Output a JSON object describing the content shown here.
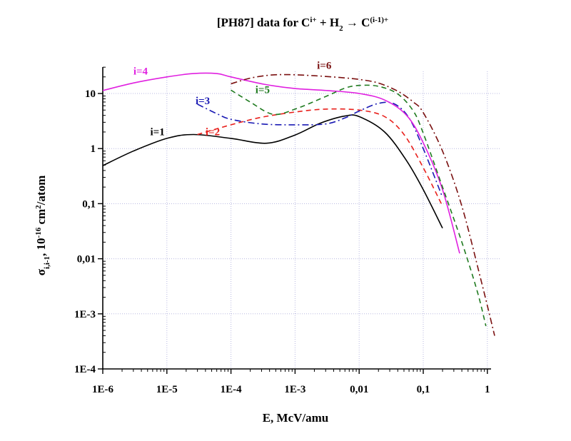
{
  "chart_data": {
    "type": "line",
    "title": {
      "prefix": "[PH87] data for ",
      "ion": "C",
      "ion_sup": "i+",
      "plus": " + ",
      "target": "H",
      "target_sub": "2",
      "arrow": " → ",
      "product": "C",
      "product_sup": "(i-1)+"
    },
    "xlabel": "E, McV/amu",
    "ylabel": {
      "symbol": "σ",
      "symbol_sub": "i,i-1",
      "rest": ", 10",
      "exp": "-16",
      "unit": " cm",
      "unit_sup": "2",
      "unit_rest": "/atom"
    },
    "xscale": "log",
    "yscale": "log",
    "xlim": [
      1e-06,
      1.3
    ],
    "ylim": [
      0.0001,
      58
    ],
    "xticks": [
      {
        "value": 1e-06,
        "label": "1E-6"
      },
      {
        "value": 1e-05,
        "label": "1E-5"
      },
      {
        "value": 0.0001,
        "label": "1E-4"
      },
      {
        "value": 0.001,
        "label": "1E-3"
      },
      {
        "value": 0.01,
        "label": "0,01"
      },
      {
        "value": 0.1,
        "label": "0,1"
      },
      {
        "value": 1,
        "label": "1"
      }
    ],
    "yticks": [
      {
        "value": 0.0001,
        "label": "1E-4"
      },
      {
        "value": 0.001,
        "label": "1E-3"
      },
      {
        "value": 0.01,
        "label": "0,01"
      },
      {
        "value": 0.1,
        "label": "0,1"
      },
      {
        "value": 1,
        "label": "1"
      },
      {
        "value": 10,
        "label": "10"
      }
    ],
    "grid": true,
    "legend": "inline labels",
    "series": [
      {
        "name": "i=1",
        "color": "#000000",
        "style": "solid",
        "label_at": [
          5.5e-06,
          1.75
        ],
        "x": [
          1e-06,
          3e-06,
          1e-05,
          2.6e-05,
          0.0001,
          0.00036,
          0.001,
          0.0025,
          0.006,
          0.01,
          0.025,
          0.055,
          0.1,
          0.2
        ],
        "y": [
          0.49,
          0.9,
          1.53,
          1.8,
          1.53,
          1.25,
          1.76,
          2.9,
          3.9,
          3.8,
          2.0,
          0.6,
          0.18,
          0.036
        ]
      },
      {
        "name": "i=2",
        "color": "#e8201c",
        "style": "dash",
        "label_at": [
          4e-05,
          1.75
        ],
        "x": [
          3e-05,
          0.0001,
          0.0003,
          0.001,
          0.003,
          0.01,
          0.025,
          0.05,
          0.1,
          0.2
        ],
        "y": [
          1.8,
          2.7,
          3.7,
          4.6,
          5.2,
          5.0,
          3.8,
          1.8,
          0.45,
          0.09
        ]
      },
      {
        "name": "i=3",
        "color": "#1a1ab4",
        "style": "dashdot",
        "label_at": [
          2.8e-05,
          6.4
        ],
        "x": [
          3e-05,
          6e-05,
          0.0001,
          0.0003,
          0.001,
          0.003,
          0.006,
          0.01,
          0.02,
          0.035,
          0.06,
          0.1,
          0.2
        ],
        "y": [
          6.4,
          4.3,
          3.4,
          2.8,
          2.7,
          2.8,
          3.6,
          4.8,
          6.6,
          6.5,
          3.6,
          1.0,
          0.13
        ]
      },
      {
        "name": "i=4",
        "color": "#e020e0",
        "style": "solid",
        "label_at": [
          3e-06,
          22
        ],
        "x": [
          1e-06,
          3e-06,
          1e-05,
          2.6e-05,
          6e-05,
          0.0001,
          0.00033,
          0.001,
          0.0032,
          0.01,
          0.025,
          0.055,
          0.1,
          0.2,
          0.37
        ],
        "y": [
          11.3,
          15.5,
          20,
          23,
          23,
          20,
          14.7,
          12.3,
          11.3,
          10,
          7.6,
          4.0,
          1.27,
          0.18,
          0.0125
        ]
      },
      {
        "name": "i=5",
        "color": "#1f7a1f",
        "style": "dash",
        "label_at": [
          0.00024,
          10.2
        ],
        "x": [
          0.0001,
          0.0002,
          0.00045,
          0.001,
          0.003,
          0.006,
          0.01,
          0.02,
          0.04,
          0.07,
          0.1,
          0.2,
          0.4,
          0.7,
          0.95
        ],
        "y": [
          11.5,
          7.0,
          4.2,
          5.2,
          8.8,
          12.5,
          14.0,
          13.5,
          9.8,
          4.8,
          1.9,
          0.2,
          0.02,
          0.0025,
          0.0006
        ]
      },
      {
        "name": "i=6",
        "color": "#7a1010",
        "style": "dashdot",
        "label_at": [
          0.0022,
          28
        ],
        "x": [
          0.0001,
          0.0002,
          0.0004,
          0.0008,
          0.002,
          0.005,
          0.01,
          0.02,
          0.04,
          0.07,
          0.1,
          0.2,
          0.4,
          0.8,
          1.3
        ],
        "y": [
          15,
          19,
          21.5,
          22,
          21,
          19.5,
          18,
          15.5,
          11,
          7,
          4.5,
          0.9,
          0.09,
          0.004,
          0.0004
        ]
      }
    ]
  }
}
